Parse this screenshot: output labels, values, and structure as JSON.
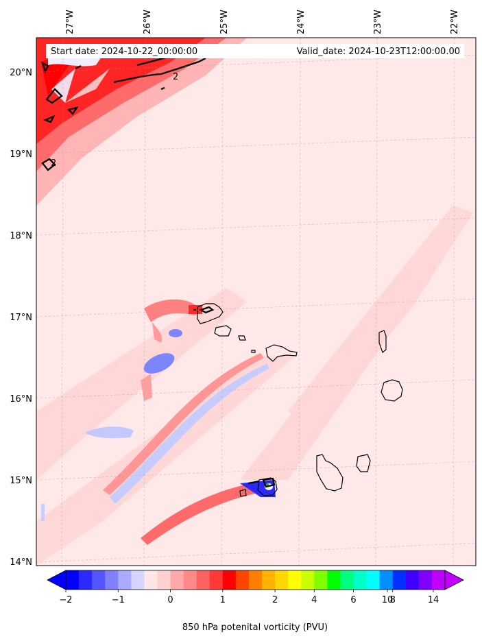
{
  "map": {
    "start_label": "Start date: 2024-10-22_00:00:00",
    "valid_label": "Valid_date: 2024-10-23T12:00:00.00",
    "lon_labels": [
      "27°W",
      "26°W",
      "25°W",
      "24°W",
      "23°W",
      "22°W"
    ],
    "lat_labels": [
      "20°N",
      "19°N",
      "18°N",
      "17°N",
      "16°N",
      "15°N",
      "14°N"
    ],
    "contour_label": "2"
  },
  "colorbar": {
    "title": "850 hPa potenital vorticity (PVU)",
    "tick_labels": [
      "−2",
      "−1",
      "0",
      "1",
      "2",
      "4",
      "6",
      "8",
      "10",
      "14"
    ],
    "colors": [
      "#0000ff",
      "#2a2aff",
      "#5555ff",
      "#7f7fff",
      "#aaaaff",
      "#d4d4ff",
      "#ffe6e6",
      "#ffd0d0",
      "#ffaaaa",
      "#ff8888",
      "#ff6060",
      "#ff3838",
      "#ff0000",
      "#ff4500",
      "#ff7f00",
      "#ffb300",
      "#ffd700",
      "#ffff00",
      "#c8ff00",
      "#7fff00",
      "#00ff00",
      "#00ff7f",
      "#00ffc8",
      "#00ffff",
      "#0090ff",
      "#0030ff",
      "#4000ff",
      "#8000ff",
      "#c000ff"
    ],
    "extend": "both"
  },
  "colors": {
    "background_field": "#ffe8e8",
    "strong_positive": "#ff1a1a",
    "negative": "#c8cdff",
    "coastline": "#000000"
  }
}
